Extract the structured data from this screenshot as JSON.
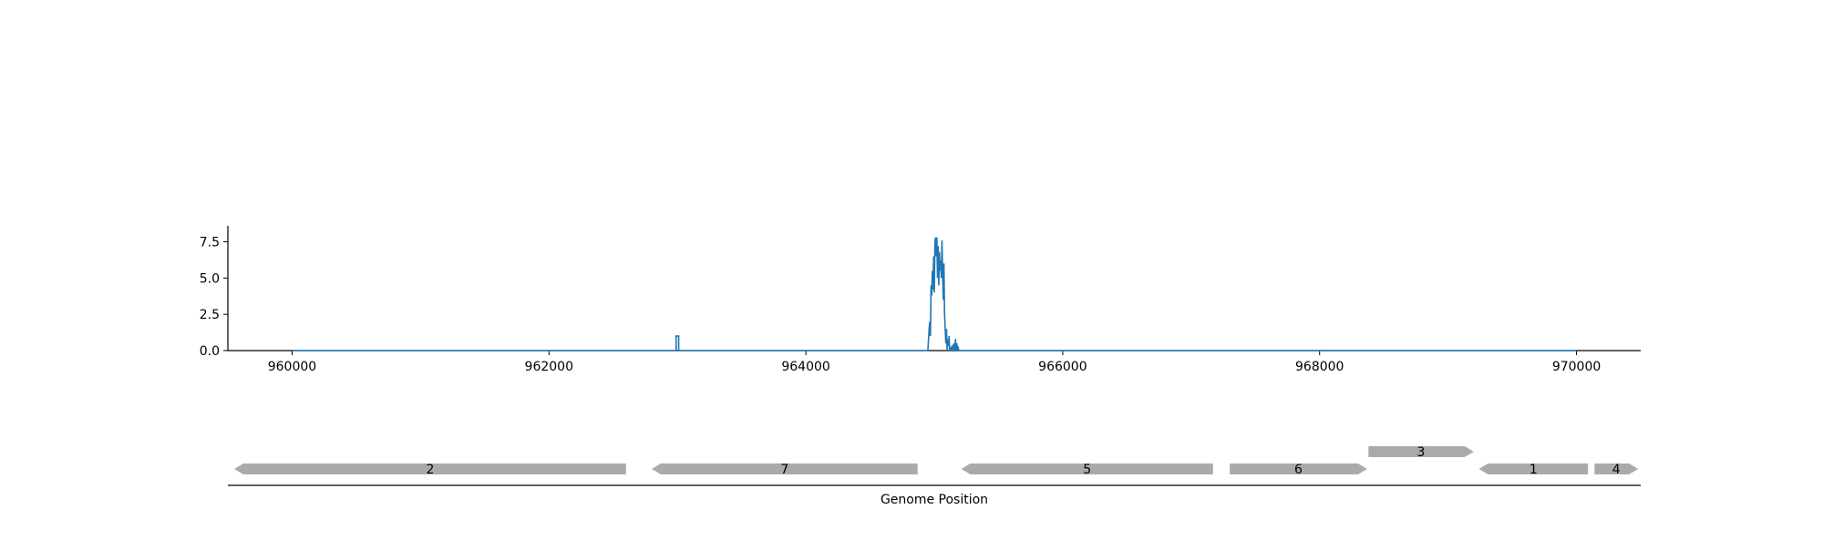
{
  "chart_data": {
    "type": "line",
    "series_color": "#1f77b4",
    "gene_color": "#aaaaaa",
    "xlim": [
      959500,
      970500
    ],
    "ylim": [
      0,
      8.6
    ],
    "x_ticks": [
      960000,
      962000,
      964000,
      966000,
      968000,
      970000
    ],
    "x_tick_labels": [
      "960000",
      "962000",
      "964000",
      "966000",
      "968000",
      "970000"
    ],
    "y_ticks": [
      0,
      2.5,
      5,
      7.5
    ],
    "y_tick_labels": [
      "0.0",
      "2.5",
      "5.0",
      "7.5"
    ],
    "xlabel": "Genome Position",
    "coverage": {
      "x": [
        960000,
        962990,
        962990,
        963010,
        963010,
        964950,
        964960,
        964965,
        964970,
        964975,
        964980,
        964985,
        964990,
        964995,
        965000,
        965005,
        965010,
        965015,
        965020,
        965025,
        965030,
        965035,
        965040,
        965045,
        965050,
        965055,
        965060,
        965065,
        965070,
        965075,
        965080,
        965085,
        965090,
        965095,
        965100,
        965105,
        965110,
        965115,
        965120,
        965125,
        965130,
        965135,
        965140,
        965145,
        965150,
        965155,
        965160,
        965165,
        965170,
        965175,
        965180,
        965185,
        965190,
        965200,
        970000
      ],
      "y": [
        0,
        0,
        1.0,
        1.0,
        0,
        0,
        1.5,
        2.0,
        1.0,
        4.5,
        3.8,
        5.5,
        4.2,
        6.5,
        4.0,
        7.5,
        7.8,
        6.5,
        7.8,
        5.0,
        7.2,
        4.5,
        6.8,
        5.5,
        6.2,
        5.0,
        7.6,
        5.2,
        3.5,
        6.0,
        2.5,
        1.5,
        0.5,
        1.5,
        0,
        0.8,
        0.3,
        1.0,
        0,
        0.2,
        0,
        0.3,
        0.1,
        0.4,
        0,
        0.5,
        0,
        0.8,
        0,
        0.5,
        0,
        0.3,
        0,
        0,
        0
      ]
    },
    "genes": [
      {
        "label": "2",
        "start": 959550,
        "end": 962600,
        "strand": "-",
        "row": 0
      },
      {
        "label": "7",
        "start": 962800,
        "end": 964870,
        "strand": "-",
        "row": 0
      },
      {
        "label": "5",
        "start": 965210,
        "end": 967170,
        "strand": "-",
        "row": 0
      },
      {
        "label": "6",
        "start": 967300,
        "end": 968370,
        "strand": "+",
        "row": 0
      },
      {
        "label": "3",
        "start": 968380,
        "end": 969200,
        "strand": "+",
        "row": 1
      },
      {
        "label": "1",
        "start": 969240,
        "end": 970090,
        "strand": "-",
        "row": 0
      },
      {
        "label": "4",
        "start": 970140,
        "end": 970480,
        "strand": "+",
        "row": 0
      }
    ]
  }
}
